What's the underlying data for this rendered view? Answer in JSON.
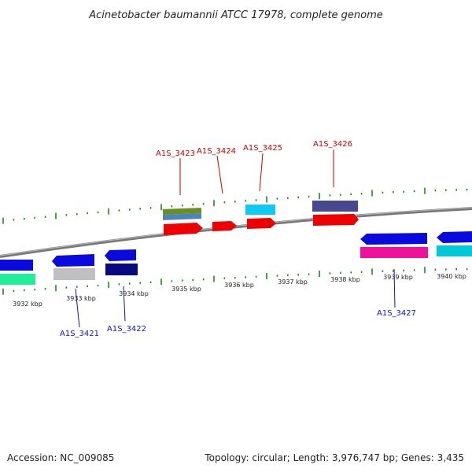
{
  "title": "Acinetobacter baumannii ATCC 17978, complete genome",
  "footer": {
    "accession": "Accession: NC_009085",
    "topology": "Topology: circular; Length: 3,976,747 bp; Genes: 3,435"
  },
  "kbp_labels": [
    "3932 kbp",
    "3933 kbp",
    "3934 kbp",
    "3935 kbp",
    "3936 kbp",
    "3937 kbp",
    "3938 kbp",
    "3939 kbp",
    "3940 kbp"
  ],
  "gene_labels_forward": [
    "A1S_3423",
    "A1S_3424",
    "A1S_3425",
    "A1S_3426"
  ],
  "gene_labels_reverse": [
    "A1S_3421",
    "A1S_3422",
    "A1S_3427"
  ],
  "colors": {
    "backbone": "#888888",
    "ticks": "#1a8c1a",
    "forward_label": "#cc0000",
    "reverse_label": "#1010c0",
    "cds": "#ee0000",
    "blue": "#0a0ae0",
    "navy": "#0a0a80",
    "green_mint": "#22ee99",
    "grey": "#c0c0c0",
    "olive": "#6b8e23",
    "steel": "#4682b4",
    "cyan": "#11c9f0",
    "slate": "#484890",
    "magenta": "#ee1199",
    "teal": "#00c8d8"
  }
}
